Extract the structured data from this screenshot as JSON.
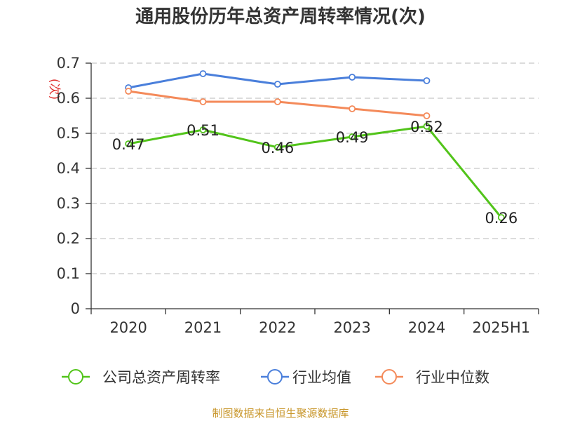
{
  "chart_data": {
    "type": "line",
    "title": "通用股份历年总资产周转率情况(次)",
    "ylabel": "(次)",
    "xlabel": "",
    "categories": [
      "2020",
      "2021",
      "2022",
      "2023",
      "2024",
      "2025H1"
    ],
    "ylim": [
      0,
      0.7
    ],
    "yticks": [
      "0",
      "0.1",
      "0.2",
      "0.3",
      "0.4",
      "0.5",
      "0.6",
      "0.7"
    ],
    "grid": true,
    "legend_position": "bottom",
    "series": [
      {
        "name": "公司总资产周转率",
        "color": "#52c41a",
        "values": [
          0.47,
          0.51,
          0.46,
          0.49,
          0.52,
          0.26
        ],
        "labels": [
          "0.47",
          "0.51",
          "0.46",
          "0.49",
          "0.52",
          "0.26"
        ]
      },
      {
        "name": "行业均值",
        "color": "#4a7fdb",
        "values": [
          0.63,
          0.67,
          0.64,
          0.66,
          0.65,
          null
        ]
      },
      {
        "name": "行业中位数",
        "color": "#f48a5a",
        "values": [
          0.62,
          0.59,
          0.59,
          0.57,
          0.55,
          null
        ]
      }
    ]
  },
  "source_text": "制图数据来自恒生聚源数据库"
}
